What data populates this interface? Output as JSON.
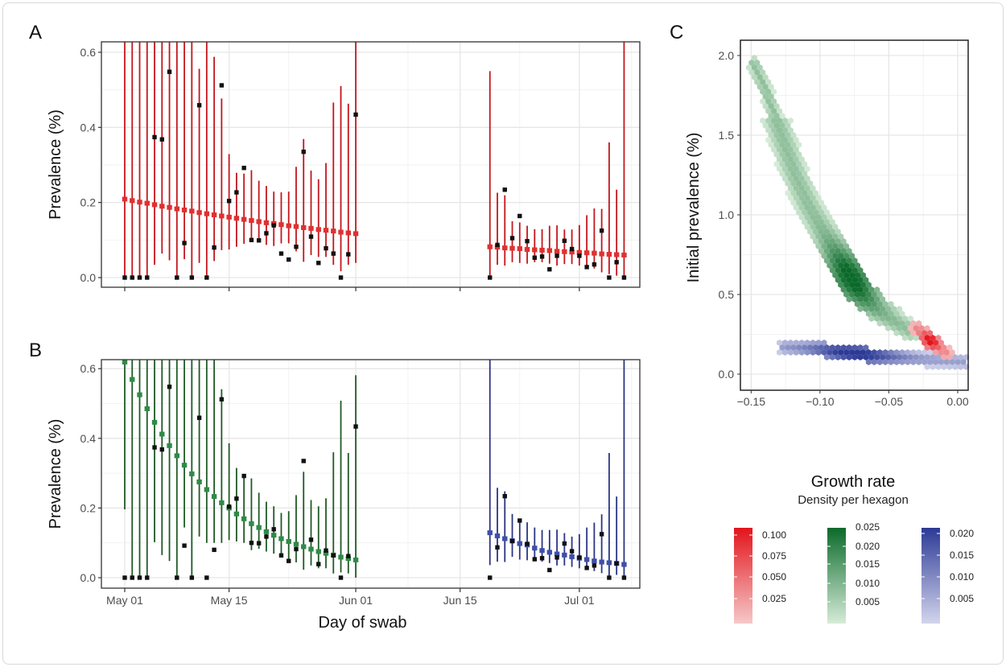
{
  "chart_data": [
    {
      "panel": "A",
      "type": "scatter",
      "ylabel": "Prevalence (%)",
      "xlabel": "",
      "ylim": [
        -0.02,
        0.63
      ],
      "yticks": [
        "0.0",
        "0.2",
        "0.4",
        "0.6"
      ],
      "yticks_values": [
        0,
        0.2,
        0.4,
        0.6
      ],
      "xticks_values": [
        "May 01",
        "May 15",
        "Jun 01",
        "Jun 15",
        "Jul 01"
      ],
      "xtick_labels_shown": false,
      "grid": true,
      "groups": [
        {
          "fit_color": "#e03030",
          "ci_color": "#c4161c",
          "x": [
            "May 01",
            "May 02",
            "May 03",
            "May 04",
            "May 05",
            "May 06",
            "May 07",
            "May 08",
            "May 09",
            "May 10",
            "May 11",
            "May 12",
            "May 13",
            "May 14",
            "May 15",
            "May 16",
            "May 17",
            "May 18",
            "May 19",
            "May 20",
            "May 21",
            "May 22",
            "May 23",
            "May 24",
            "May 25",
            "May 26",
            "May 27",
            "May 28",
            "May 29",
            "May 30",
            "May 31",
            "Jun 01"
          ],
          "observed": [
            0,
            0,
            0,
            0,
            0.374,
            0.368,
            0.548,
            0,
            0.092,
            0,
            0.459,
            0,
            0.08,
            0.512,
            0.204,
            0.227,
            0.292,
            0.1,
            0.099,
            0.118,
            0.139,
            0.064,
            0.048,
            0.082,
            0.335,
            0.109,
            0.039,
            0.078,
            0.064,
            0,
            0.062,
            0.434
          ],
          "fit": [
            0.209,
            0.205,
            0.201,
            0.198,
            0.194,
            0.19,
            0.187,
            0.183,
            0.18,
            0.177,
            0.173,
            0.17,
            0.167,
            0.164,
            0.161,
            0.158,
            0.155,
            0.152,
            0.149,
            0.146,
            0.144,
            0.141,
            0.138,
            0.136,
            0.133,
            0.131,
            0.128,
            0.126,
            0.124,
            0.121,
            0.119,
            0.117
          ],
          "ci_upper": [
            null,
            null,
            null,
            null,
            null,
            null,
            null,
            null,
            null,
            null,
            0.556,
            null,
            0.588,
            0.477,
            0.329,
            0.279,
            0.277,
            0.286,
            0.258,
            0.244,
            0.229,
            0.227,
            0.229,
            0.295,
            0.369,
            0.285,
            0.262,
            0.305,
            0.466,
            0.51,
            0.463,
            null
          ],
          "ci_lower": [
            0,
            0,
            0,
            0,
            0.034,
            0.064,
            0.046,
            0,
            0.049,
            0,
            0.039,
            0,
            0.044,
            0.073,
            0.075,
            0.082,
            0.09,
            0.097,
            0.096,
            0.087,
            0.084,
            0.091,
            0.091,
            0.07,
            0.042,
            0.06,
            0.055,
            0.055,
            0.034,
            0.017,
            0.034,
            0.039
          ]
        },
        {
          "fit_color": "#e03030",
          "ci_color": "#c4161c",
          "x": [
            "Jun 19",
            "Jun 20",
            "Jun 21",
            "Jun 22",
            "Jun 23",
            "Jun 24",
            "Jun 25",
            "Jun 26",
            "Jun 27",
            "Jun 28",
            "Jun 29",
            "Jun 30",
            "Jul 01",
            "Jul 02",
            "Jul 03",
            "Jul 04",
            "Jul 05",
            "Jul 06",
            "Jul 07"
          ],
          "observed": [
            0,
            0.087,
            0.234,
            0.105,
            0.164,
            0.097,
            0.053,
            0.056,
            0.022,
            0.058,
            0.098,
            0.076,
            0.058,
            0.028,
            0.035,
            0.125,
            0,
            0.041,
            0
          ],
          "fit": [
            0.082,
            0.081,
            0.079,
            0.078,
            0.077,
            0.075,
            0.074,
            0.073,
            0.072,
            0.07,
            0.069,
            0.068,
            0.067,
            0.066,
            0.065,
            0.063,
            0.062,
            0.061,
            0.06
          ],
          "ci_upper": [
            0.55,
            0.226,
            0.219,
            0.15,
            0.147,
            0.138,
            0.129,
            0.129,
            0.138,
            0.139,
            0.128,
            0.128,
            0.14,
            0.166,
            0.184,
            0.183,
            0.36,
            0.234,
            null
          ],
          "ci_lower": [
            0,
            0.034,
            0.032,
            0.041,
            0.039,
            0.037,
            0.041,
            0.041,
            0.037,
            0.032,
            0.036,
            0.036,
            0.032,
            0.025,
            0.024,
            0.014,
            0.009,
            0.005,
            0
          ]
        }
      ]
    },
    {
      "panel": "B",
      "type": "scatter",
      "ylabel": "Prevalence (%)",
      "xlabel": "Day of swab",
      "ylim": [
        -0.02,
        0.63
      ],
      "yticks": [
        "0.0",
        "0.2",
        "0.4",
        "0.6"
      ],
      "yticks_values": [
        0,
        0.2,
        0.4,
        0.6
      ],
      "xticks": [
        "May 01",
        "May 15",
        "Jun 01",
        "Jun 15",
        "Jul 01"
      ],
      "grid": true,
      "groups": [
        {
          "fit_color": "#2e8b46",
          "ci_color": "#1f5a26",
          "x": [
            "May 01",
            "May 02",
            "May 03",
            "May 04",
            "May 05",
            "May 06",
            "May 07",
            "May 08",
            "May 09",
            "May 10",
            "May 11",
            "May 12",
            "May 13",
            "May 14",
            "May 15",
            "May 16",
            "May 17",
            "May 18",
            "May 19",
            "May 20",
            "May 21",
            "May 22",
            "May 23",
            "May 24",
            "May 25",
            "May 26",
            "May 27",
            "May 28",
            "May 29",
            "May 30",
            "May 31",
            "Jun 01"
          ],
          "observed": [
            0,
            0,
            0,
            0,
            0.374,
            0.368,
            0.548,
            0,
            0.092,
            0,
            0.459,
            0,
            0.08,
            0.512,
            0.204,
            0.227,
            0.292,
            0.1,
            0.099,
            0.118,
            0.139,
            0.064,
            0.048,
            0.082,
            0.335,
            0.109,
            0.039,
            0.078,
            0.064,
            0,
            0.062,
            0.434
          ],
          "fit": [
            0.619,
            0.569,
            0.525,
            0.485,
            0.446,
            0.412,
            0.379,
            0.35,
            0.323,
            0.298,
            0.275,
            0.253,
            0.233,
            0.215,
            0.2,
            0.183,
            0.169,
            0.155,
            0.144,
            0.132,
            0.122,
            0.112,
            0.104,
            0.096,
            0.089,
            0.082,
            0.075,
            0.07,
            0.065,
            0.059,
            0.055,
            0.051
          ],
          "ci_upper": [
            null,
            null,
            null,
            null,
            null,
            null,
            null,
            null,
            null,
            null,
            null,
            null,
            null,
            0.541,
            0.386,
            0.315,
            0.29,
            0.285,
            0.244,
            0.218,
            0.205,
            0.186,
            0.191,
            0.237,
            0.304,
            0.223,
            0.205,
            0.228,
            0.36,
            0.508,
            0.358,
            0.581
          ],
          "ci_lower": [
            0.196,
            0,
            0,
            0,
            0.102,
            0.065,
            0.048,
            0,
            0.144,
            0,
            0.118,
            0.1,
            0.1,
            0.1,
            0.108,
            0.104,
            0.1,
            0.079,
            0.083,
            0.075,
            0.069,
            0.058,
            0.054,
            0.044,
            0.023,
            0.035,
            0.027,
            0.027,
            0.012,
            0.015,
            0.012,
            0
          ]
        },
        {
          "fit_color": "#3f4fa8",
          "ci_color": "#2b3584",
          "x": [
            "Jun 19",
            "Jun 20",
            "Jun 21",
            "Jun 22",
            "Jun 23",
            "Jun 24",
            "Jun 25",
            "Jun 26",
            "Jun 27",
            "Jun 28",
            "Jun 29",
            "Jun 30",
            "Jul 01",
            "Jul 02",
            "Jul 03",
            "Jul 04",
            "Jul 05",
            "Jul 06",
            "Jul 07"
          ],
          "observed": [
            0,
            0.087,
            0.234,
            0.105,
            0.164,
            0.097,
            0.053,
            0.056,
            0.022,
            0.058,
            0.098,
            0.076,
            0.058,
            0.028,
            0.035,
            0.125,
            0,
            0.041,
            0
          ],
          "fit": [
            0.129,
            0.12,
            0.112,
            0.106,
            0.098,
            0.094,
            0.085,
            0.078,
            0.073,
            0.068,
            0.065,
            0.06,
            0.056,
            0.052,
            0.048,
            0.045,
            0.043,
            0.041,
            0.038
          ],
          "ci_upper": [
            null,
            0.258,
            0.248,
            0.183,
            0.169,
            0.159,
            0.144,
            0.137,
            0.137,
            0.138,
            0.128,
            0.118,
            0.125,
            0.144,
            0.158,
            0.182,
            0.358,
            0.233,
            null
          ],
          "ci_lower": [
            0.036,
            0.046,
            0.045,
            0.06,
            0.052,
            0.05,
            0.05,
            0.046,
            0.042,
            0.035,
            0.035,
            0.031,
            0.027,
            0.023,
            0.019,
            0.013,
            0,
            0.008,
            0
          ]
        }
      ]
    },
    {
      "panel": "C",
      "type": "heatmap",
      "subtype": "hexbin",
      "xlabel": "Growth rate",
      "ylabel": "Initial prevalence (%)",
      "legend_title": "Density per hexagon",
      "legend_placement": "bottom",
      "xlim": [
        -0.158,
        0.008
      ],
      "ylim": [
        -0.1,
        2.1
      ],
      "xticks": [
        "−0.15",
        "−0.10",
        "−0.05",
        "0.00"
      ],
      "xticks_values": [
        -0.15,
        -0.1,
        -0.05,
        0
      ],
      "yticks": [
        "0.0",
        "0.5",
        "1.0",
        "1.5",
        "2.0"
      ],
      "yticks_values": [
        0,
        0.5,
        1,
        1.5,
        2
      ],
      "grid": true,
      "clusters": [
        {
          "color_low": "#d6ecd8",
          "color_high": "#0b6a2a",
          "ridge": [
            [
              -0.148,
              1.95
            ],
            [
              -0.138,
              1.75
            ],
            [
              -0.128,
              1.5
            ],
            [
              -0.118,
              1.25
            ],
            [
              -0.108,
              1.05
            ],
            [
              -0.098,
              0.9
            ],
            [
              -0.088,
              0.75
            ],
            [
              -0.078,
              0.61
            ],
            [
              -0.068,
              0.49
            ],
            [
              -0.058,
              0.4
            ],
            [
              -0.046,
              0.33
            ],
            [
              -0.034,
              0.27
            ]
          ],
          "peak": [
            -0.078,
            0.6
          ],
          "legend": {
            "ticks": [
              "0.025",
              "0.020",
              "0.015",
              "0.010",
              "0.005"
            ]
          }
        },
        {
          "color_low": "#d3d5ec",
          "color_high": "#2c3a96",
          "ridge": [
            [
              -0.126,
              0.17
            ],
            [
              -0.105,
              0.16
            ],
            [
              -0.085,
              0.14
            ],
            [
              -0.065,
              0.12
            ],
            [
              -0.045,
              0.105
            ],
            [
              -0.02,
              0.09
            ],
            [
              0.01,
              0.075
            ]
          ],
          "peak": [
            -0.075,
            0.13
          ],
          "legend": {
            "ticks": [
              "0.020",
              "0.015",
              "0.010",
              "0.005"
            ]
          }
        },
        {
          "color_low": "#f6c8c9",
          "color_high": "#e3141c",
          "ridge": [
            [
              -0.03,
              0.29
            ],
            [
              -0.02,
              0.21
            ],
            [
              -0.008,
              0.13
            ]
          ],
          "peak": [
            -0.02,
            0.21
          ],
          "legend": {
            "ticks": [
              "0.100",
              "0.075",
              "0.050",
              "0.025"
            ]
          }
        }
      ]
    }
  ],
  "panels": {
    "a": "A",
    "b": "B",
    "c": "C"
  }
}
